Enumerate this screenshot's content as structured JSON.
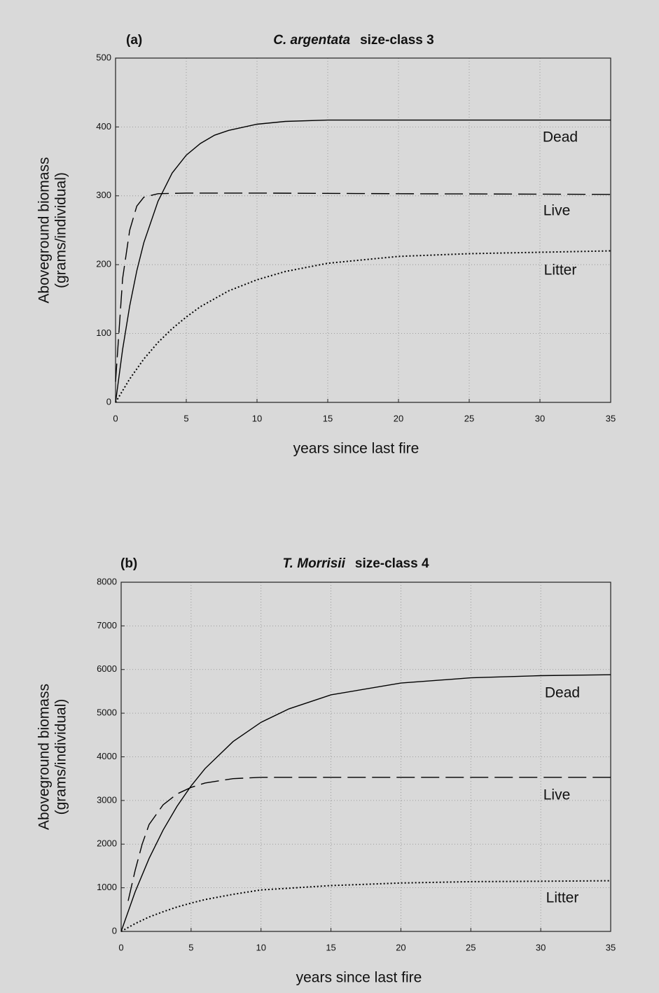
{
  "chart_data": [
    {
      "type": "line",
      "panel_label": "(a)",
      "title_italic": "C. argentata",
      "title": "size-class 3",
      "ylabel": [
        "Aboveground biomass",
        "(grams/individual)"
      ],
      "xlabel": "years since last fire",
      "xlim": [
        0,
        35
      ],
      "xticks": [
        0,
        5,
        10,
        15,
        20,
        25,
        30,
        35
      ],
      "ylim": [
        0,
        500
      ],
      "yticks": [
        0,
        100,
        200,
        300,
        400,
        500
      ],
      "grid": true,
      "series": [
        {
          "name": "Dead",
          "color": "#000000",
          "style": "solid",
          "x": [
            0,
            0.5,
            1,
            1.5,
            2,
            3,
            4,
            5,
            6,
            7,
            8,
            10,
            12,
            15,
            20,
            25,
            30,
            35
          ],
          "values": [
            0,
            77,
            140,
            191,
            232,
            292,
            333,
            359,
            376,
            388,
            395,
            404,
            408,
            410,
            410,
            410,
            410,
            410
          ]
        },
        {
          "name": "Live",
          "color": "#000000",
          "style": "dashed",
          "x": [
            0,
            0.5,
            1,
            1.5,
            2,
            3,
            5,
            10,
            20,
            35
          ],
          "values": [
            30,
            180,
            250,
            285,
            298,
            303,
            304,
            304,
            303,
            302
          ]
        },
        {
          "name": "Litter",
          "color": "#000000",
          "style": "dotted",
          "x": [
            0,
            1,
            2,
            3,
            4,
            5,
            6,
            8,
            10,
            12,
            15,
            20,
            25,
            30,
            35
          ],
          "values": [
            0,
            34,
            63,
            87,
            107,
            124,
            139,
            162,
            178,
            190,
            202,
            212,
            216,
            218,
            220
          ]
        }
      ]
    },
    {
      "type": "line",
      "panel_label": "(b)",
      "title_italic": "T. Morrisii",
      "title": "size-class 4",
      "ylabel": [
        "Aboveground biomass",
        "(grams/individual)"
      ],
      "xlabel": "years since last fire",
      "xlim": [
        0,
        35
      ],
      "xticks": [
        0,
        5,
        10,
        15,
        20,
        25,
        30,
        35
      ],
      "ylim": [
        0,
        8000
      ],
      "yticks": [
        0,
        1000,
        2000,
        3000,
        4000,
        5000,
        6000,
        7000,
        8000
      ],
      "grid": true,
      "series": [
        {
          "name": "Dead",
          "color": "#000000",
          "style": "solid",
          "x": [
            0,
            1,
            2,
            3,
            4,
            5,
            6,
            8,
            10,
            12,
            15,
            20,
            25,
            30,
            35
          ],
          "values": [
            0,
            907,
            1672,
            2321,
            2870,
            3334,
            3730,
            4350,
            4790,
            5100,
            5420,
            5690,
            5810,
            5860,
            5880
          ]
        },
        {
          "name": "Live",
          "color": "#000000",
          "style": "dashed",
          "x": [
            0.5,
            1,
            1.5,
            2,
            3,
            4,
            5,
            6,
            8,
            10,
            15,
            35
          ],
          "values": [
            700,
            1400,
            2000,
            2450,
            2900,
            3150,
            3300,
            3400,
            3500,
            3530,
            3530,
            3530
          ]
        },
        {
          "name": "Litter",
          "color": "#000000",
          "style": "dotted",
          "x": [
            0,
            1,
            2,
            3,
            4,
            5,
            6,
            8,
            10,
            15,
            20,
            25,
            30,
            35
          ],
          "values": [
            0,
            180,
            330,
            450,
            560,
            650,
            730,
            850,
            950,
            1050,
            1110,
            1140,
            1150,
            1160
          ]
        }
      ]
    }
  ]
}
